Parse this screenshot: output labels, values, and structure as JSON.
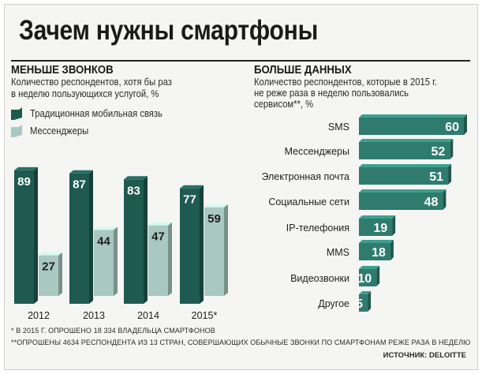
{
  "title": "Зачем нужны смартфоны",
  "left": {
    "heading": "МЕНЬШЕ ЗВОНКОВ",
    "subtitle_lines": [
      "Количество респондентов, хотя бы раз",
      "в неделю пользующихся услугой, %"
    ],
    "legend": [
      {
        "label": "Традиционная мобильная связь",
        "color": "#1e5a50"
      },
      {
        "label": "Мессенджеры",
        "color": "#a9c8c1"
      }
    ]
  },
  "right": {
    "heading": "БОЛЬШЕ ДАННЫХ",
    "subtitle_lines": [
      "Количество респондентов, которые в 2015 г.",
      "не реже раза в неделю пользовались",
      "сервисом**, %"
    ]
  },
  "footnotes": [
    "* В 2015 Г. ОПРОШЕНО 18 334 ВЛАДЕЛЬЦА СМАРТФОНОВ",
    "**ОПРОШЕНЫ 4634 РЕСПОНДЕНТА ИЗ 13 СТРАН, СОВЕРШАЮЩИХ ОБЫЧНЫЕ ЗВОНКИ ПО СМАРТФОНАМ РЕЖЕ РАЗА В НЕДЕЛЮ"
  ],
  "source": "ИСТОЧНИК: DELOITTE",
  "chart_data": [
    {
      "type": "bar",
      "title": "МЕНЬШЕ ЗВОНКОВ",
      "categories": [
        "2012",
        "2013",
        "2014",
        "2015*"
      ],
      "series": [
        {
          "name": "Традиционная мобильная связь",
          "values": [
            89,
            87,
            83,
            77
          ],
          "color": "#1e5a50"
        },
        {
          "name": "Мессенджеры",
          "values": [
            27,
            44,
            47,
            59
          ],
          "color": "#a9c8c1"
        }
      ],
      "ylim": [
        0,
        100
      ],
      "legend": "top-left"
    },
    {
      "type": "bar",
      "orientation": "horizontal",
      "title": "БОЛЬШЕ ДАННЫХ",
      "categories": [
        "SMS",
        "Мессенджеры",
        "Электронная почта",
        "Социальные сети",
        "IP-телефония",
        "MMS",
        "Видеозвонки",
        "Другое"
      ],
      "values": [
        60,
        52,
        51,
        48,
        19,
        18,
        10,
        5
      ],
      "color": "#2f7b6e",
      "xlim": [
        0,
        60
      ]
    }
  ]
}
